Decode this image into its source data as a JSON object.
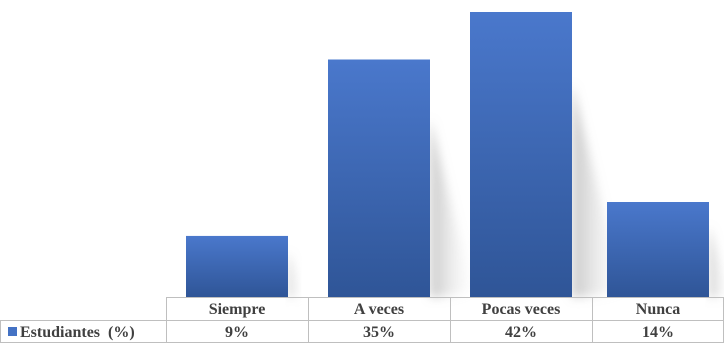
{
  "chart_data": {
    "type": "bar",
    "categories": [
      "Siempre",
      "A veces",
      "Pocas veces",
      "Nunca"
    ],
    "series": [
      {
        "name": "Estudiantes  (%)",
        "values": [
          9,
          35,
          42,
          14
        ],
        "labels": [
          "9%",
          "35%",
          "42%",
          "14%"
        ],
        "color": "#4472C4"
      }
    ],
    "ylim": [
      0,
      42
    ],
    "grid": false,
    "legend": "data-table-left"
  },
  "colors": {
    "bar_top": "#4A78CC",
    "bar_bottom": "#2F5597",
    "table_border": "#BFBFBF",
    "legend_key": "#4472C4"
  }
}
